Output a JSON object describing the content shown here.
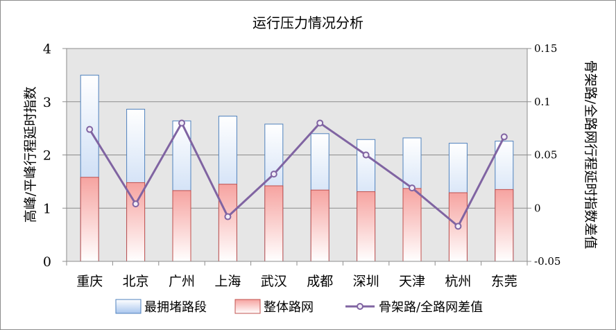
{
  "chart_data": {
    "type": "bar",
    "title": "运行压力情况分析",
    "ylabel": "高峰/平峰行程延时指数",
    "y2label": "骨架路/全路网行程延时指数差值",
    "categories": [
      "重庆",
      "北京",
      "广州",
      "上海",
      "武汉",
      "成都",
      "深圳",
      "天津",
      "杭州",
      "东莞"
    ],
    "ylim": [
      0,
      4
    ],
    "yticks": [
      0,
      1,
      2,
      3,
      4
    ],
    "y2lim": [
      -0.05,
      0.15
    ],
    "y2ticks": [
      -0.05,
      0,
      0.05,
      0.1,
      0.15
    ],
    "grid": true,
    "legend_position": "bottom",
    "series": [
      {
        "name": "最拥堵路段",
        "kind": "bar",
        "axis": "left",
        "values": [
          3.5,
          2.86,
          2.64,
          2.73,
          2.58,
          2.4,
          2.29,
          2.32,
          2.22,
          2.26
        ],
        "color": "#4F81BD"
      },
      {
        "name": "整体路网",
        "kind": "bar",
        "axis": "left",
        "values": [
          1.58,
          1.48,
          1.33,
          1.45,
          1.42,
          1.34,
          1.31,
          1.37,
          1.29,
          1.35
        ],
        "color": "#C0504D"
      },
      {
        "name": "骨架路/全路网差值",
        "kind": "line",
        "axis": "right",
        "values": [
          0.074,
          0.004,
          0.08,
          -0.008,
          0.032,
          0.08,
          0.05,
          0.019,
          -0.017,
          0.067
        ],
        "color": "#8064A2"
      }
    ]
  }
}
